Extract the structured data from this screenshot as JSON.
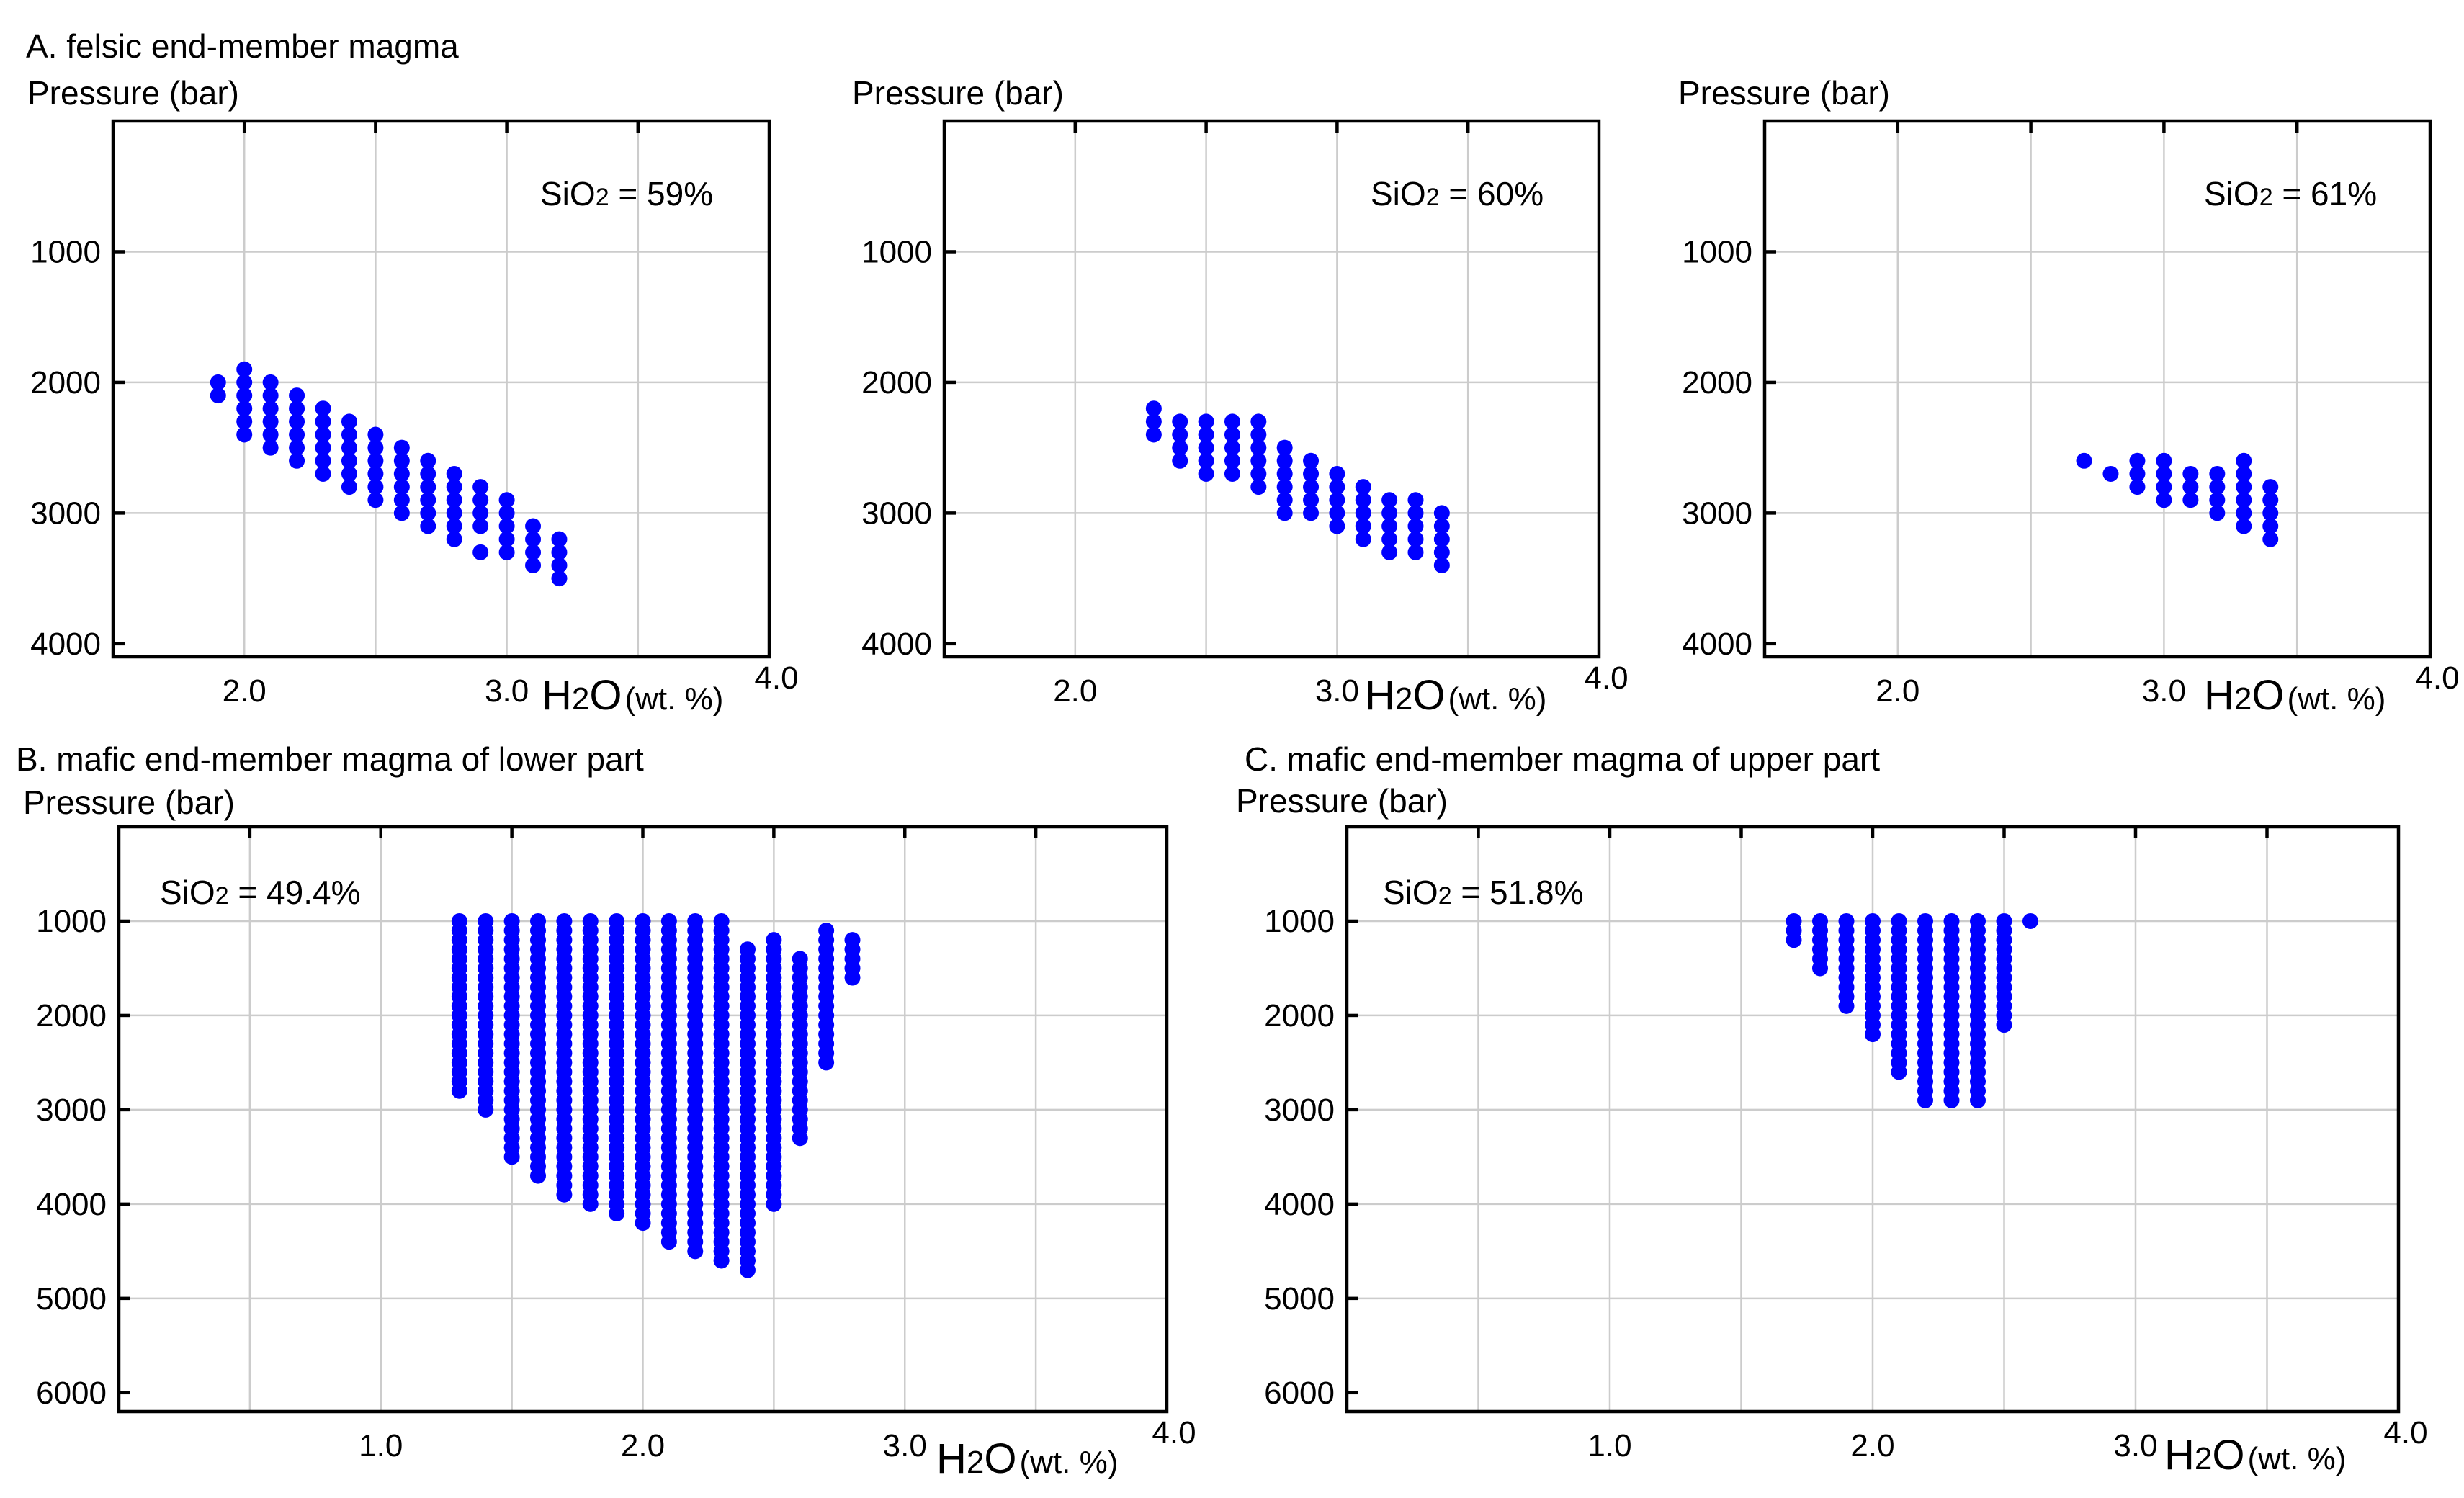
{
  "figure": {
    "colors": {
      "points": "#0000ff",
      "grid": "#cccccc",
      "frame": "#000000"
    }
  },
  "chart_data": [
    {
      "id": "A1",
      "type": "scatter",
      "title": "A. felsic end-member magma",
      "ylabel": "Pressure (bar)",
      "xlabel": {
        "main": "H",
        "sub": "2",
        "tail": "O",
        "unit": "(wt. %)"
      },
      "annotation": {
        "pre": "SiO",
        "sub": "2",
        "post": " = 59%"
      },
      "xlim": [
        1.5,
        4.0
      ],
      "ylim": [
        0,
        4100
      ],
      "y_inverted": true,
      "grid": true,
      "xgrid": [
        2.0,
        2.5,
        3.0,
        3.5
      ],
      "xtick_marks": [
        2.0,
        2.5,
        3.0,
        3.5
      ],
      "xtick_labels": [
        {
          "x": 2.0,
          "label": "2.0"
        },
        {
          "x": 3.0,
          "label": "3.0"
        },
        {
          "x": 4.0,
          "label": "4.0"
        }
      ],
      "ygrid": [
        1000,
        2000,
        3000
      ],
      "ytick_labels": [
        {
          "y": 1000,
          "label": "1000"
        },
        {
          "y": 2000,
          "label": "2000"
        },
        {
          "y": 3000,
          "label": "3000"
        },
        {
          "y": 4000,
          "label": "4000"
        }
      ],
      "columns": [
        {
          "x": 1.9,
          "p": [
            2000,
            2100
          ]
        },
        {
          "x": 2.0,
          "p": [
            1900,
            2000,
            2100,
            2200,
            2300,
            2400
          ]
        },
        {
          "x": 2.1,
          "p": [
            2000,
            2100,
            2200,
            2300,
            2400,
            2500
          ]
        },
        {
          "x": 2.2,
          "p": [
            2100,
            2200,
            2300,
            2400,
            2500,
            2600
          ]
        },
        {
          "x": 2.3,
          "p": [
            2200,
            2300,
            2400,
            2500,
            2600,
            2700
          ]
        },
        {
          "x": 2.4,
          "p": [
            2300,
            2400,
            2500,
            2600,
            2700,
            2800
          ]
        },
        {
          "x": 2.5,
          "p": [
            2400,
            2500,
            2600,
            2700,
            2800,
            2900
          ]
        },
        {
          "x": 2.6,
          "p": [
            2500,
            2600,
            2700,
            2800,
            2900,
            3000
          ]
        },
        {
          "x": 2.7,
          "p": [
            2600,
            2700,
            2800,
            2900,
            3000,
            3100
          ]
        },
        {
          "x": 2.8,
          "p": [
            2700,
            2800,
            2900,
            3000,
            3100,
            3200
          ]
        },
        {
          "x": 2.9,
          "p": [
            2800,
            2900,
            3000,
            3100,
            3300
          ]
        },
        {
          "x": 3.0,
          "p": [
            2900,
            3000,
            3100,
            3200,
            3300
          ]
        },
        {
          "x": 3.1,
          "p": [
            3100,
            3200,
            3300,
            3400
          ]
        },
        {
          "x": 3.2,
          "p": [
            3200,
            3300,
            3400,
            3500
          ]
        }
      ]
    },
    {
      "id": "A2",
      "type": "scatter",
      "title": "",
      "ylabel": "Pressure (bar)",
      "xlabel": {
        "main": "H",
        "sub": "2",
        "tail": "O",
        "unit": "(wt. %)"
      },
      "annotation": {
        "pre": "SiO",
        "sub": "2",
        "post": " = 60%"
      },
      "xlim": [
        1.5,
        4.0
      ],
      "ylim": [
        0,
        4100
      ],
      "y_inverted": true,
      "grid": true,
      "xgrid": [
        2.0,
        2.5,
        3.0,
        3.5
      ],
      "xtick_marks": [
        2.0,
        2.5,
        3.0,
        3.5
      ],
      "xtick_labels": [
        {
          "x": 2.0,
          "label": "2.0"
        },
        {
          "x": 3.0,
          "label": "3.0"
        },
        {
          "x": 4.0,
          "label": "4.0"
        }
      ],
      "ygrid": [
        1000,
        2000,
        3000
      ],
      "ytick_labels": [
        {
          "y": 1000,
          "label": "1000"
        },
        {
          "y": 2000,
          "label": "2000"
        },
        {
          "y": 3000,
          "label": "3000"
        },
        {
          "y": 4000,
          "label": "4000"
        }
      ],
      "columns": [
        {
          "x": 2.3,
          "p": [
            2200,
            2300,
            2400
          ]
        },
        {
          "x": 2.4,
          "p": [
            2300,
            2400,
            2500,
            2600
          ]
        },
        {
          "x": 2.5,
          "p": [
            2300,
            2400,
            2500,
            2600,
            2700
          ]
        },
        {
          "x": 2.6,
          "p": [
            2300,
            2400,
            2500,
            2600,
            2700
          ]
        },
        {
          "x": 2.7,
          "p": [
            2300,
            2400,
            2500,
            2600,
            2700,
            2800
          ]
        },
        {
          "x": 2.8,
          "p": [
            2500,
            2600,
            2700,
            2800,
            2900,
            3000
          ]
        },
        {
          "x": 2.9,
          "p": [
            2600,
            2700,
            2800,
            2900,
            3000
          ]
        },
        {
          "x": 3.0,
          "p": [
            2700,
            2800,
            2900,
            3000,
            3100
          ]
        },
        {
          "x": 3.1,
          "p": [
            2800,
            2900,
            3000,
            3100,
            3200
          ]
        },
        {
          "x": 3.2,
          "p": [
            2900,
            3000,
            3100,
            3200,
            3300
          ]
        },
        {
          "x": 3.3,
          "p": [
            2900,
            3000,
            3100,
            3200,
            3300
          ]
        },
        {
          "x": 3.4,
          "p": [
            3000,
            3100,
            3200,
            3300,
            3400
          ]
        }
      ]
    },
    {
      "id": "A3",
      "type": "scatter",
      "title": "",
      "ylabel": "Pressure (bar)",
      "xlabel": {
        "main": "H",
        "sub": "2",
        "tail": "O",
        "unit": "(wt. %)"
      },
      "annotation": {
        "pre": "SiO",
        "sub": "2",
        "post": " = 61%"
      },
      "xlim": [
        1.5,
        4.0
      ],
      "ylim": [
        0,
        4100
      ],
      "y_inverted": true,
      "grid": true,
      "xgrid": [
        2.0,
        2.5,
        3.0,
        3.5
      ],
      "xtick_marks": [
        2.0,
        2.5,
        3.0,
        3.5
      ],
      "xtick_labels": [
        {
          "x": 2.0,
          "label": "2.0"
        },
        {
          "x": 3.0,
          "label": "3.0"
        },
        {
          "x": 4.0,
          "label": "4.0"
        }
      ],
      "ygrid": [
        1000,
        2000,
        3000
      ],
      "ytick_labels": [
        {
          "y": 1000,
          "label": "1000"
        },
        {
          "y": 2000,
          "label": "2000"
        },
        {
          "y": 3000,
          "label": "3000"
        },
        {
          "y": 4000,
          "label": "4000"
        }
      ],
      "columns": [
        {
          "x": 2.7,
          "p": [
            2600
          ]
        },
        {
          "x": 2.8,
          "p": [
            2700
          ]
        },
        {
          "x": 2.9,
          "p": [
            2600,
            2700,
            2800
          ]
        },
        {
          "x": 3.0,
          "p": [
            2600,
            2700,
            2800,
            2900
          ]
        },
        {
          "x": 3.1,
          "p": [
            2700,
            2800,
            2900
          ]
        },
        {
          "x": 3.2,
          "p": [
            2700,
            2800,
            2900,
            3000
          ]
        },
        {
          "x": 3.3,
          "p": [
            2600,
            2700,
            2800,
            2900,
            3000,
            3100
          ]
        },
        {
          "x": 3.4,
          "p": [
            2800,
            2900,
            3000,
            3100,
            3200
          ]
        }
      ]
    },
    {
      "id": "B",
      "type": "scatter",
      "title": "B. mafic end-member magma of lower part",
      "ylabel": "Pressure (bar)",
      "xlabel": {
        "main": "H",
        "sub": "2",
        "tail": "O",
        "unit": "(wt. %)"
      },
      "annotation": {
        "pre": "SiO",
        "sub": "2",
        "post": " = 49.4%"
      },
      "xlim": [
        0,
        4.0
      ],
      "ylim": [
        0,
        6200
      ],
      "y_inverted": true,
      "grid": true,
      "xgrid": [
        0.5,
        1.0,
        1.5,
        2.0,
        2.5,
        3.0,
        3.5
      ],
      "xtick_marks": [
        0.5,
        1.0,
        1.5,
        2.0,
        2.5,
        3.0,
        3.5
      ],
      "xtick_labels": [
        {
          "x": 1.0,
          "label": "1.0"
        },
        {
          "x": 2.0,
          "label": "2.0"
        },
        {
          "x": 3.0,
          "label": "3.0"
        },
        {
          "x": 4.0,
          "label": "4.0"
        }
      ],
      "ygrid": [
        1000,
        2000,
        3000,
        4000,
        5000
      ],
      "ytick_labels": [
        {
          "y": 1000,
          "label": "1000"
        },
        {
          "y": 2000,
          "label": "2000"
        },
        {
          "y": 3000,
          "label": "3000"
        },
        {
          "y": 4000,
          "label": "4000"
        },
        {
          "y": 5000,
          "label": "5000"
        },
        {
          "y": 6000,
          "label": "6000"
        }
      ],
      "point_step": 100,
      "ranges": [
        {
          "x": 1.3,
          "from": 1000,
          "to": 2800
        },
        {
          "x": 1.4,
          "from": 1000,
          "to": 3000
        },
        {
          "x": 1.5,
          "from": 1000,
          "to": 3500
        },
        {
          "x": 1.6,
          "from": 1000,
          "to": 3700
        },
        {
          "x": 1.7,
          "from": 1000,
          "to": 3900
        },
        {
          "x": 1.8,
          "from": 1000,
          "to": 4000
        },
        {
          "x": 1.9,
          "from": 1000,
          "to": 4100
        },
        {
          "x": 2.0,
          "from": 1000,
          "to": 4200
        },
        {
          "x": 2.1,
          "from": 1000,
          "to": 4400
        },
        {
          "x": 2.2,
          "from": 1000,
          "to": 4500
        },
        {
          "x": 2.3,
          "from": 1000,
          "to": 4600
        },
        {
          "x": 2.4,
          "from": 1300,
          "to": 4700
        },
        {
          "x": 2.5,
          "from": 1200,
          "to": 4000
        },
        {
          "x": 2.6,
          "from": 1400,
          "to": 3300
        },
        {
          "x": 2.7,
          "from": 1100,
          "to": 2500
        },
        {
          "x": 2.8,
          "from": 1200,
          "to": 1600
        }
      ]
    },
    {
      "id": "C",
      "type": "scatter",
      "title": "C. mafic end-member magma of upper part",
      "ylabel": "Pressure (bar)",
      "xlabel": {
        "main": "H",
        "sub": "2",
        "tail": "O",
        "unit": "(wt. %)"
      },
      "annotation": {
        "pre": "SiO",
        "sub": "2",
        "post": " = 51.8%"
      },
      "xlim": [
        0,
        4.0
      ],
      "ylim": [
        0,
        6200
      ],
      "y_inverted": true,
      "grid": true,
      "xgrid": [
        0.5,
        1.0,
        1.5,
        2.0,
        2.5,
        3.0,
        3.5
      ],
      "xtick_marks": [
        0.5,
        1.0,
        1.5,
        2.0,
        2.5,
        3.0,
        3.5
      ],
      "xtick_labels": [
        {
          "x": 1.0,
          "label": "1.0"
        },
        {
          "x": 2.0,
          "label": "2.0"
        },
        {
          "x": 3.0,
          "label": "3.0"
        },
        {
          "x": 4.0,
          "label": "4.0"
        }
      ],
      "ygrid": [
        1000,
        2000,
        3000,
        4000,
        5000
      ],
      "ytick_labels": [
        {
          "y": 1000,
          "label": "1000"
        },
        {
          "y": 2000,
          "label": "2000"
        },
        {
          "y": 3000,
          "label": "3000"
        },
        {
          "y": 4000,
          "label": "4000"
        },
        {
          "y": 5000,
          "label": "5000"
        },
        {
          "y": 6000,
          "label": "6000"
        }
      ],
      "point_step": 100,
      "ranges": [
        {
          "x": 1.7,
          "from": 1000,
          "to": 1200
        },
        {
          "x": 1.8,
          "from": 1000,
          "to": 1500
        },
        {
          "x": 1.9,
          "from": 1000,
          "to": 1900
        },
        {
          "x": 2.0,
          "from": 1000,
          "to": 2200
        },
        {
          "x": 2.1,
          "from": 1000,
          "to": 2600
        },
        {
          "x": 2.2,
          "from": 1000,
          "to": 2900
        },
        {
          "x": 2.3,
          "from": 1000,
          "to": 2900
        },
        {
          "x": 2.4,
          "from": 1000,
          "to": 2900
        },
        {
          "x": 2.5,
          "from": 1000,
          "to": 2100
        },
        {
          "x": 2.6,
          "from": 1000,
          "to": 1000
        }
      ]
    }
  ]
}
